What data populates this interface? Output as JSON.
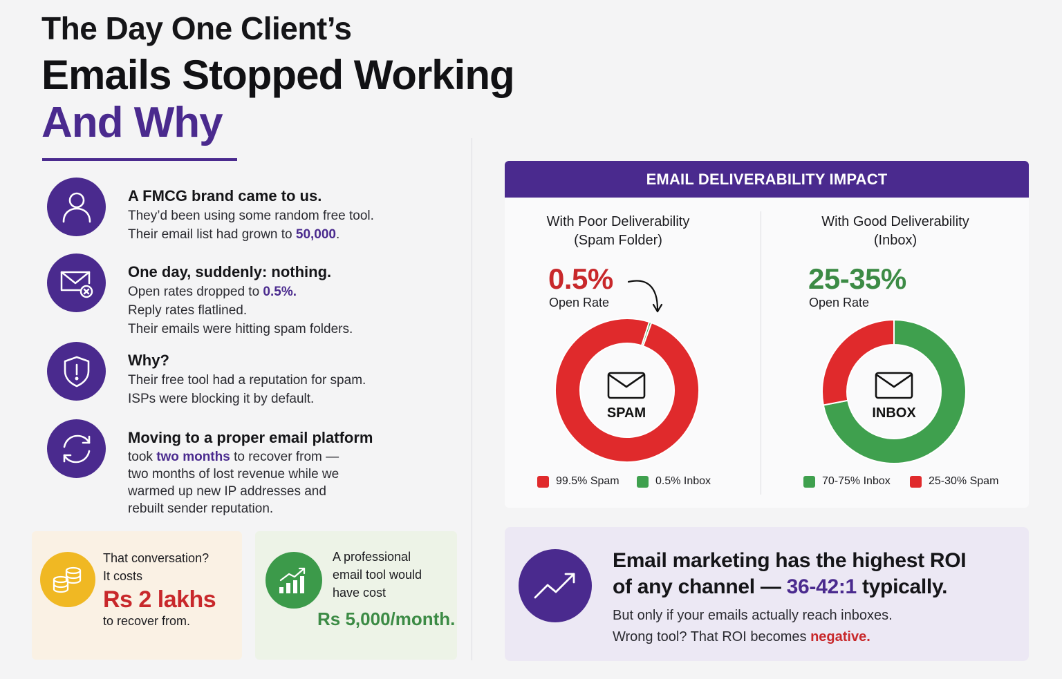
{
  "title": {
    "line1": "The Day One Client’s",
    "line2": "Emails Stopped Working",
    "line3": "And Why"
  },
  "steps": [
    {
      "icon": "user-icon",
      "heading": "A FMCG brand came to us.",
      "line1": "They’d been using some random free tool.",
      "line2_pre": "Their email list had grown to ",
      "line2_hl": "50,000",
      "line2_post": "."
    },
    {
      "icon": "email-error-icon",
      "heading": "One day, suddenly: nothing.",
      "line1_pre": "Open rates dropped to ",
      "line1_hl": "0.5%.",
      "line2": "Reply rates flatlined.",
      "line3": "Their emails were hitting spam folders."
    },
    {
      "icon": "shield-alert-icon",
      "heading": "Why?",
      "line1": "Their free tool had a reputation for spam.",
      "line2": "ISPs were blocking it by default."
    },
    {
      "icon": "refresh-icon",
      "heading": "Moving to a proper email platform",
      "line1_pre": "took ",
      "line1_hl": "two months",
      "line1_post": " to recover from —",
      "line2": "two months of lost revenue while we",
      "line3": "warmed up new IP addresses and",
      "line4": "rebuilt sender reputation."
    }
  ],
  "cost_card": {
    "icon": "coins-icon",
    "line1": "That conversation?",
    "line2": "It costs",
    "amount": "Rs 2 lakhs",
    "line3": "to recover from."
  },
  "pro_card": {
    "icon": "growth-chart-icon",
    "line1": "A professional",
    "line2": "email tool would",
    "line3": "have cost",
    "amount": "Rs 5,000/month."
  },
  "impact": {
    "header": "EMAIL DELIVERABILITY IMPACT",
    "poor": {
      "title1": "With Poor Deliverability",
      "title2": "(Spam Folder)",
      "pct": "0.5%",
      "pct_label": "Open Rate",
      "center_label": "SPAM",
      "legend1": "99.5% Spam",
      "legend2": "0.5% Inbox"
    },
    "good": {
      "title1": "With Good Deliverability",
      "title2": "(Inbox)",
      "pct": "25-35%",
      "pct_label": "Open Rate",
      "center_label": "INBOX",
      "legend1": "70-75% Inbox",
      "legend2": "25-30% Spam"
    }
  },
  "roi": {
    "icon": "trend-up-icon",
    "head1": "Email marketing has the highest ROI",
    "head2_pre": "of any channel — ",
    "head2_hl": "36-42:1",
    "head2_post": " typically.",
    "sub1": "But only if your emails actually reach inboxes.",
    "sub2_pre": "Wrong tool? That ROI becomes ",
    "sub2_neg": "negative."
  },
  "chart_data": [
    {
      "type": "pie",
      "title": "With Poor Deliverability (Spam Folder)",
      "categories": [
        "Spam",
        "Inbox"
      ],
      "values": [
        99.5,
        0.5
      ],
      "colors": [
        "#e02a2c",
        "#3fa04e"
      ]
    },
    {
      "type": "pie",
      "title": "With Good Deliverability (Inbox)",
      "categories": [
        "Inbox",
        "Spam"
      ],
      "values": [
        72,
        28
      ],
      "colors": [
        "#3fa04e",
        "#e02a2c"
      ]
    }
  ],
  "colors": {
    "brand_purple": "#4a2a8e",
    "spam_red": "#e02a2c",
    "inbox_green": "#3fa04e",
    "coin_yellow": "#f0b823"
  }
}
